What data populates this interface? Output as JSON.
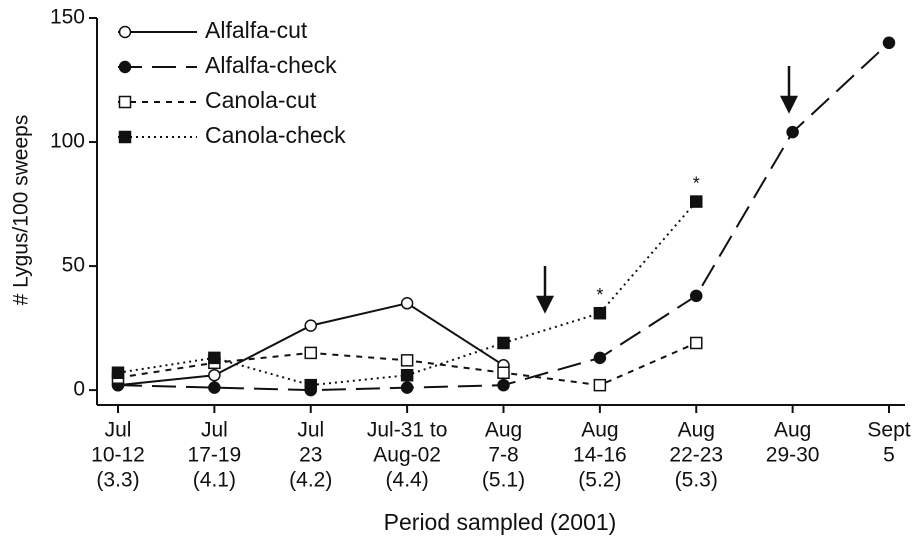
{
  "chart_data": {
    "type": "line",
    "y_label": "# Lygus/100 sweeps",
    "x_label": "Period sampled (2001)",
    "categories": [
      [
        "Jul",
        "10-12",
        "(3.3)"
      ],
      [
        "Jul",
        "17-19",
        "(4.1)"
      ],
      [
        "Jul",
        "23",
        "(4.2)"
      ],
      [
        "Jul-31 to",
        "Aug-02",
        "(4.4)"
      ],
      [
        "Aug",
        "7-8",
        "(5.1)"
      ],
      [
        "Aug",
        "14-16",
        "(5.2)"
      ],
      [
        "Aug",
        "22-23",
        "(5.3)"
      ],
      [
        "Aug",
        "29-30"
      ],
      [
        "Sept",
        "5"
      ]
    ],
    "series": [
      {
        "name": "Alfalfa-cut",
        "color": "#111111",
        "dash": "solid",
        "marker": "open-circle",
        "values": [
          2,
          6,
          26,
          35,
          10,
          null,
          null,
          null,
          null
        ]
      },
      {
        "name": "Alfalfa-check",
        "color": "#111111",
        "dash": "long",
        "marker": "filled-circle",
        "values": [
          2,
          1,
          0,
          1,
          2,
          13,
          38,
          104,
          140
        ]
      },
      {
        "name": "Canola-cut",
        "color": "#111111",
        "dash": "short",
        "marker": "open-square",
        "values": [
          5,
          11,
          15,
          12,
          7,
          2,
          19,
          null,
          null
        ]
      },
      {
        "name": "Canola-check",
        "color": "#111111",
        "dash": "dotted",
        "marker": "filled-square",
        "values": [
          7,
          13,
          2,
          6,
          19,
          31,
          76,
          null,
          null
        ],
        "notes": [
          null,
          null,
          null,
          null,
          null,
          "*",
          "*",
          null,
          null
        ]
      }
    ],
    "ylim": [
      -6,
      150
    ],
    "yticks": [
      0,
      50,
      100,
      150
    ],
    "legend": "upper-left"
  }
}
